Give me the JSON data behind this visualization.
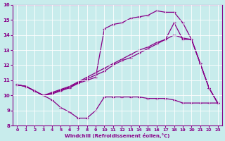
{
  "xlabel": "Windchill (Refroidissement éolien,°C)",
  "bg_color": "#c8ecec",
  "line_color": "#880088",
  "grid_color": "#aadddd",
  "xlim": [
    -0.5,
    23.5
  ],
  "ylim": [
    8,
    16
  ],
  "xticks": [
    0,
    1,
    2,
    3,
    4,
    5,
    6,
    7,
    8,
    9,
    10,
    11,
    12,
    13,
    14,
    15,
    16,
    17,
    18,
    19,
    20,
    21,
    22,
    23
  ],
  "yticks": [
    8,
    9,
    10,
    11,
    12,
    13,
    14,
    15,
    16
  ],
  "line1_x": [
    0,
    1,
    2,
    3,
    4,
    5,
    6,
    7,
    8,
    9,
    10,
    11,
    12,
    13,
    14,
    15,
    16,
    17,
    18,
    19,
    20,
    21,
    22,
    23
  ],
  "line1_y": [
    10.7,
    10.6,
    10.3,
    10.0,
    9.7,
    9.2,
    8.9,
    8.5,
    8.5,
    9.0,
    9.9,
    9.9,
    9.9,
    9.9,
    9.9,
    9.8,
    9.8,
    9.8,
    9.7,
    9.5,
    9.5,
    9.5,
    9.5,
    9.5
  ],
  "line2_x": [
    0,
    1,
    2,
    3,
    4,
    5,
    6,
    7,
    8,
    9,
    10,
    11,
    12,
    13,
    14,
    15,
    16,
    17,
    18,
    19,
    20,
    21,
    22,
    23
  ],
  "line2_y": [
    10.7,
    10.6,
    10.3,
    10.0,
    10.1,
    10.3,
    10.5,
    10.8,
    11.0,
    11.2,
    14.4,
    14.7,
    14.8,
    15.1,
    15.2,
    15.3,
    15.6,
    15.5,
    15.5,
    14.8,
    13.7,
    12.1,
    10.5,
    9.5
  ],
  "line3_x": [
    0,
    1,
    2,
    3,
    4,
    5,
    6,
    7,
    8,
    9,
    10,
    11,
    12,
    13,
    14,
    15,
    16,
    17,
    18,
    19,
    20,
    21,
    22,
    23
  ],
  "line3_y": [
    10.7,
    10.6,
    10.3,
    10.0,
    10.2,
    10.4,
    10.6,
    10.9,
    11.2,
    11.5,
    11.8,
    12.1,
    12.4,
    12.7,
    13.0,
    13.2,
    13.5,
    13.7,
    14.0,
    13.8,
    13.7,
    12.1,
    10.5,
    9.5
  ],
  "line4_x": [
    0,
    1,
    2,
    3,
    4,
    5,
    6,
    7,
    8,
    9,
    10,
    11,
    12,
    13,
    14,
    15,
    16,
    17,
    18,
    19,
    20,
    21,
    22,
    23
  ],
  "line4_y": [
    10.7,
    10.6,
    10.3,
    10.0,
    10.15,
    10.35,
    10.55,
    10.85,
    11.1,
    11.35,
    11.6,
    12.0,
    12.3,
    12.5,
    12.8,
    13.1,
    13.4,
    13.7,
    14.8,
    13.7,
    13.7,
    12.1,
    10.5,
    9.5
  ]
}
